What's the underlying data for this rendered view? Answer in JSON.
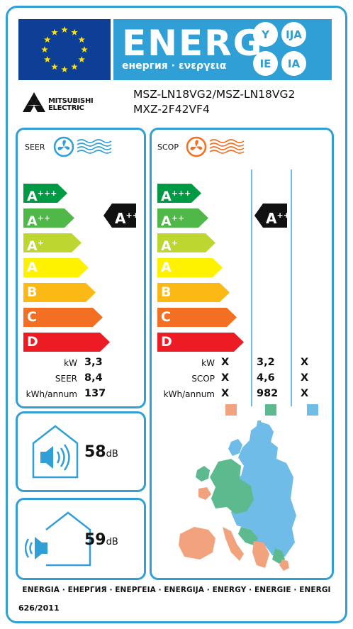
{
  "header": {
    "energy_word": "ENERG",
    "energy_subtitle": "енергия · ενεργεια",
    "language_suffixes": [
      "Y",
      "IJA",
      "IE",
      "IA"
    ],
    "eu_flag_icon": "eu-flag-icon"
  },
  "supplier": {
    "logo_text_line1": "MITSUBISHI",
    "logo_text_line2": "ELECTRIC",
    "model_indoor": "MSZ-LN18VG2/MSZ-LN18VG2",
    "model_outdoor": "MXZ-2F42VF4"
  },
  "cooling": {
    "title": "SEER",
    "icon": "snowflake-fan-icon",
    "rating_arrow": {
      "letter": "A",
      "plus": "++"
    },
    "rows": [
      {
        "label": "kW",
        "value": "3,3"
      },
      {
        "label": "SEER",
        "value": "8,4"
      },
      {
        "label": "kWh/annum",
        "value": "137"
      }
    ]
  },
  "heating": {
    "title": "SCOP",
    "icon": "heat-fan-icon",
    "rating_arrow": {
      "letter": "A",
      "plus": "++"
    },
    "rows": [
      {
        "label": "kW",
        "values": [
          "X",
          "3,2",
          "X"
        ]
      },
      {
        "label": "SCOP",
        "values": [
          "X",
          "4,6",
          "X"
        ]
      },
      {
        "label": "kWh/annum",
        "values": [
          "X",
          "982",
          "X"
        ]
      }
    ],
    "climate_zone_colors": [
      "#f2a37e",
      "#5dba8e",
      "#6fbce8"
    ]
  },
  "energy_classes": [
    {
      "letter": "A",
      "plus": "+++",
      "color": "#009a44"
    },
    {
      "letter": "A",
      "plus": "++",
      "color": "#50b848"
    },
    {
      "letter": "A",
      "plus": "+",
      "color": "#bed630"
    },
    {
      "letter": "A",
      "plus": "",
      "color": "#fff200"
    },
    {
      "letter": "B",
      "plus": "",
      "color": "#fcb814"
    },
    {
      "letter": "C",
      "plus": "",
      "color": "#f36f21"
    },
    {
      "letter": "D",
      "plus": "",
      "color": "#ed1c24"
    }
  ],
  "noise": {
    "indoor": {
      "value": "58",
      "unit": "dB",
      "icon": "indoor-speaker-house-icon"
    },
    "outdoor": {
      "value": "59",
      "unit": "dB",
      "icon": "outdoor-speaker-house-icon"
    }
  },
  "footer": {
    "languages": "ENERGIA · ЕНЕРГИЯ · ΕΝΕΡΓΕΙΑ · ENERGIJA · ENERGY · ENERGIE · ENERGI",
    "regulation": "626/2011"
  }
}
